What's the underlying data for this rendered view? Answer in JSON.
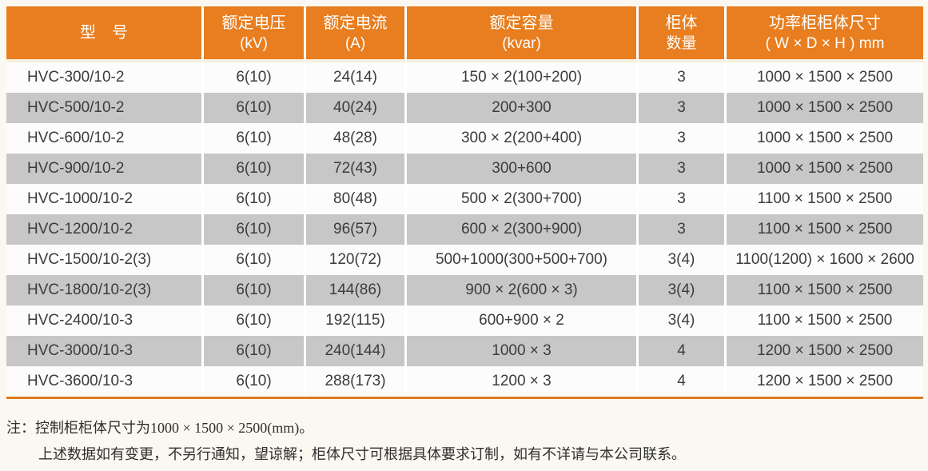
{
  "colors": {
    "header_bg": "#E87E1F",
    "header_text": "#FFFFFF",
    "row_white_bg": "#FCFCFC",
    "row_gray_bg": "#C7C7C7",
    "cell_text": "#3C3C3C",
    "bottom_rule": "#DE7B1B",
    "header_gap_line": "#F7EFDF"
  },
  "table": {
    "headers": [
      {
        "line1": "型　号",
        "line2": ""
      },
      {
        "line1": "额定电压",
        "line2": "(kV)"
      },
      {
        "line1": "额定电流",
        "line2": "(A)"
      },
      {
        "line1": "额定容量",
        "line2": "(kvar)"
      },
      {
        "line1": "柜体",
        "line2": "数量"
      },
      {
        "line1": "功率柜柜体尺寸",
        "line2": "( W × D × H ) mm"
      }
    ],
    "rows": [
      [
        "HVC-300/10-2",
        "6(10)",
        "24(14)",
        "150 × 2(100+200)",
        "3",
        "1000 × 1500 × 2500"
      ],
      [
        "HVC-500/10-2",
        "6(10)",
        "40(24)",
        "200+300",
        "3",
        "1000 × 1500 × 2500"
      ],
      [
        "HVC-600/10-2",
        "6(10)",
        "48(28)",
        "300 × 2(200+400)",
        "3",
        "1000 × 1500 × 2500"
      ],
      [
        "HVC-900/10-2",
        "6(10)",
        "72(43)",
        "300+600",
        "3",
        "1000 × 1500 × 2500"
      ],
      [
        "HVC-1000/10-2",
        "6(10)",
        "80(48)",
        "500 × 2(300+700)",
        "3",
        "1100 × 1500 × 2500"
      ],
      [
        "HVC-1200/10-2",
        "6(10)",
        "96(57)",
        "600 × 2(300+900)",
        "3",
        "1100 × 1500 × 2500"
      ],
      [
        "HVC-1500/10-2(3)",
        "6(10)",
        "120(72)",
        "500+1000(300+500+700)",
        "3(4)",
        "1100(1200) × 1600 × 2600"
      ],
      [
        "HVC-1800/10-2(3)",
        "6(10)",
        "144(86)",
        "900 × 2(600 × 3)",
        "3(4)",
        "1100 × 1500 × 2500"
      ],
      [
        "HVC-2400/10-3",
        "6(10)",
        "192(115)",
        "600+900 × 2",
        "3(4)",
        "1100 × 1500 × 2500"
      ],
      [
        "HVC-3000/10-3",
        "6(10)",
        "240(144)",
        "1000 × 3",
        "4",
        "1200 × 1500 × 2500"
      ],
      [
        "HVC-3600/10-3",
        "6(10)",
        "288(173)",
        "1200 × 3",
        "4",
        "1200 × 1500 × 2500"
      ]
    ]
  },
  "notes": {
    "line1": "注：控制柜柜体尺寸为1000 × 1500 × 2500(mm)。",
    "line2": "上述数据如有变更，不另行通知，望谅解；柜体尺寸可根据具体要求订制，如有不详请与本公司联系。"
  }
}
